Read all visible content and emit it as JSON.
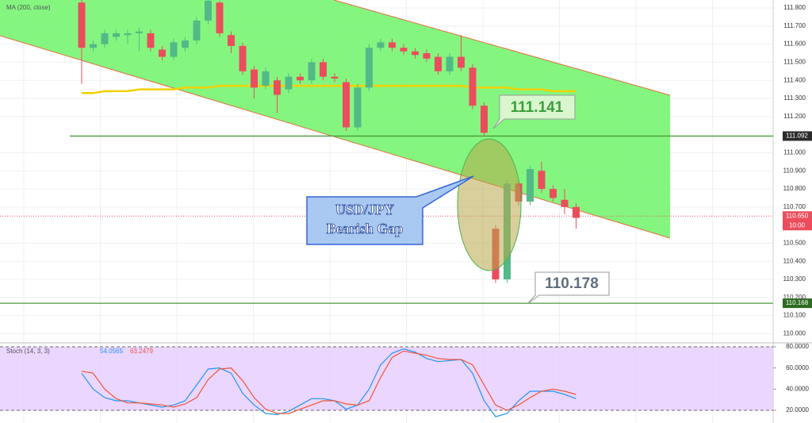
{
  "chart_data": [
    {
      "type": "candlestick",
      "open": [
        111.83,
        111.58,
        111.6,
        111.64,
        111.65,
        111.66,
        111.66,
        111.57,
        111.53,
        111.58,
        111.62,
        111.73,
        111.83,
        111.65,
        111.59,
        111.46,
        111.37,
        111.4,
        111.35,
        111.42,
        111.4,
        111.5,
        111.42,
        111.39,
        111.14,
        111.36,
        111.58,
        111.61,
        111.58,
        111.56,
        111.55,
        111.53,
        111.45,
        111.53,
        111.47,
        111.26,
        110.58,
        110.3,
        110.83,
        110.73,
        110.9,
        110.8,
        110.74,
        110.7
      ],
      "high": [
        111.85,
        111.62,
        111.68,
        111.68,
        111.68,
        111.69,
        111.68,
        111.59,
        111.63,
        111.64,
        111.75,
        111.85,
        111.84,
        111.67,
        111.61,
        111.48,
        111.47,
        111.42,
        111.44,
        111.44,
        111.52,
        111.52,
        111.44,
        111.41,
        111.38,
        111.6,
        111.63,
        111.63,
        111.6,
        111.58,
        111.57,
        111.55,
        111.55,
        111.65,
        111.49,
        111.28,
        110.6,
        110.85,
        110.85,
        110.93,
        110.95,
        110.82,
        110.8,
        110.72
      ],
      "low": [
        111.38,
        111.56,
        111.58,
        111.62,
        111.6,
        111.56,
        111.56,
        111.51,
        111.51,
        111.56,
        111.6,
        111.71,
        111.64,
        111.55,
        111.43,
        111.3,
        111.35,
        111.22,
        111.33,
        111.38,
        111.38,
        111.4,
        111.39,
        111.12,
        111.12,
        111.34,
        111.56,
        111.56,
        111.54,
        111.52,
        111.5,
        111.43,
        111.43,
        111.45,
        111.24,
        111.09,
        110.28,
        110.28,
        110.71,
        110.71,
        110.78,
        110.73,
        110.66,
        110.58
      ],
      "close": [
        111.58,
        111.6,
        111.66,
        111.66,
        111.66,
        111.67,
        111.58,
        111.53,
        111.61,
        111.62,
        111.73,
        111.84,
        111.66,
        111.59,
        111.45,
        111.36,
        111.45,
        111.32,
        111.42,
        111.4,
        111.5,
        111.42,
        111.41,
        111.14,
        111.36,
        111.58,
        111.61,
        111.58,
        111.56,
        111.54,
        111.52,
        111.45,
        111.53,
        111.47,
        111.26,
        111.11,
        110.3,
        110.83,
        110.73,
        110.91,
        110.8,
        110.75,
        110.7,
        110.64
      ],
      "up_color": "#53b987",
      "down_color": "#eb4d5c",
      "overlay": {
        "name": "MA (200, close)",
        "color": "#f2d000",
        "values": [
          111.33,
          111.33,
          111.34,
          111.34,
          111.34,
          111.35,
          111.35,
          111.35,
          111.35,
          111.36,
          111.36,
          111.36,
          111.37,
          111.37,
          111.37,
          111.37,
          111.37,
          111.37,
          111.37,
          111.37,
          111.37,
          111.37,
          111.37,
          111.37,
          111.37,
          111.37,
          111.37,
          111.37,
          111.37,
          111.37,
          111.37,
          111.37,
          111.37,
          111.37,
          111.36,
          111.36,
          111.36,
          111.36,
          111.35,
          111.35,
          111.35,
          111.34,
          111.34,
          111.34
        ]
      },
      "ylim": [
        109.958,
        111.844
      ],
      "yticks": [
        {
          "value": 111.8,
          "label": "111.800"
        },
        {
          "value": 111.7,
          "label": "111.700"
        },
        {
          "value": 111.6,
          "label": "111.600"
        },
        {
          "value": 111.5,
          "label": "111.500"
        },
        {
          "value": 111.4,
          "label": "111.400"
        },
        {
          "value": 111.3,
          "label": "111.300"
        },
        {
          "value": 111.2,
          "label": "111.200"
        },
        {
          "value": 111.0,
          "label": "111.000"
        },
        {
          "value": 110.9,
          "label": "110.900"
        },
        {
          "value": 110.8,
          "label": "110.800"
        },
        {
          "value": 110.7,
          "label": "110.700"
        },
        {
          "value": 110.5,
          "label": "110.500"
        },
        {
          "value": 110.4,
          "label": "110.400"
        },
        {
          "value": 110.3,
          "label": "110.300"
        },
        {
          "value": 110.2,
          "label": "110.200"
        },
        {
          "value": 110.1,
          "label": "110.100"
        },
        {
          "value": 110.0,
          "label": "110.000"
        }
      ],
      "levels": [
        111.092,
        110.168
      ],
      "level_color": "#4a9a3a",
      "current_price": {
        "value": 110.65,
        "label": "110.650"
      },
      "countdown": "10:00",
      "annotations": {
        "high_label": "111.141",
        "low_label": "110.178",
        "callout": [
          "USD/JPY",
          "Bearish Gap"
        ]
      },
      "grid": true
    },
    {
      "type": "line",
      "title": "Stoch (14, 3, 3)",
      "legend_values": [
        54.0565,
        63.2479
      ],
      "series": [
        {
          "color": "#2196f3",
          "values": [
            55,
            40,
            32,
            29,
            29,
            27,
            25,
            23,
            25,
            29,
            44,
            59,
            60,
            55,
            36,
            25,
            17,
            16,
            19,
            25,
            31,
            31,
            29,
            21,
            25,
            40,
            63,
            74,
            78,
            75,
            69,
            66,
            67,
            68,
            55,
            29,
            14,
            17,
            29,
            38,
            38,
            38,
            35,
            31
          ]
        },
        {
          "color": "#f0553a",
          "values": [
            57,
            55,
            40,
            31,
            27,
            27,
            26,
            25,
            23,
            26,
            32,
            49,
            59,
            60,
            48,
            32,
            21,
            17,
            17,
            21,
            25,
            29,
            29,
            26,
            25,
            29,
            51,
            70,
            76,
            74,
            72,
            69,
            68,
            68,
            63,
            44,
            25,
            20,
            25,
            32,
            38,
            40,
            38,
            35
          ]
        }
      ],
      "band": [
        20,
        80
      ],
      "ylim": [
        8,
        83
      ],
      "yticks": [
        {
          "value": 80,
          "label": "80.0000"
        },
        {
          "value": 60,
          "label": "60.0000"
        },
        {
          "value": 40,
          "label": "40.0000"
        },
        {
          "value": 20,
          "label": "20.0000"
        }
      ]
    }
  ]
}
